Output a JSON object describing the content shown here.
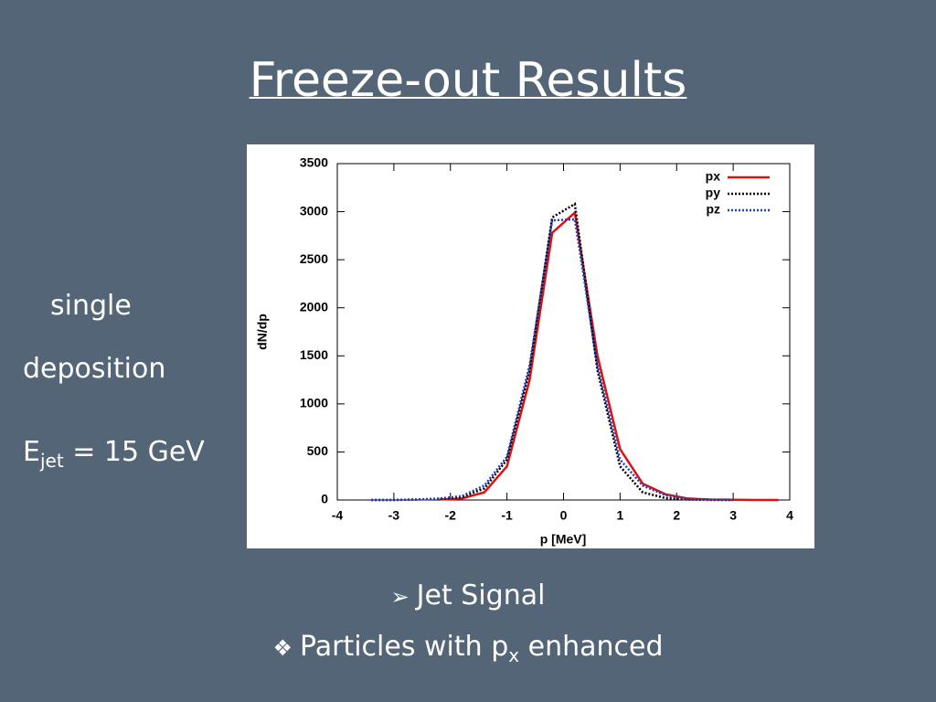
{
  "title": "Freeze-out Results",
  "side_text": {
    "line1": "single",
    "line2": "deposition",
    "energy": {
      "base": "E",
      "sub": "jet",
      "rest": " = 15 GeV"
    }
  },
  "bullets": [
    {
      "marker": "➢",
      "text": "Jet Signal"
    },
    {
      "marker": "❖",
      "text": "Particles with ",
      "base": "p",
      "sub": "x",
      "rest": " enhanced"
    }
  ],
  "chart_data": {
    "type": "line",
    "xlabel": "p [MeV]",
    "ylabel": "dN/dp",
    "x": [
      -3.4,
      -3.0,
      -2.6,
      -2.2,
      -1.8,
      -1.4,
      -1.0,
      -0.6,
      -0.2,
      0.2,
      0.6,
      1.0,
      1.4,
      1.8,
      2.2,
      2.6,
      3.0,
      3.4,
      3.8
    ],
    "series": [
      {
        "name": "px",
        "color": "#e01010",
        "style": "solid",
        "values": [
          null,
          null,
          null,
          5,
          15,
          80,
          350,
          1250,
          2780,
          2990,
          1500,
          530,
          170,
          60,
          15,
          5,
          2,
          0,
          0
        ]
      },
      {
        "name": "py",
        "color": "#000000",
        "style": "dotted",
        "values": [
          0,
          0,
          5,
          10,
          30,
          120,
          420,
          1350,
          2940,
          3080,
          1350,
          350,
          80,
          20,
          5,
          0,
          0,
          null,
          null
        ]
      },
      {
        "name": "pz",
        "color": "#1f3fbf",
        "style": "dotted",
        "values": [
          0,
          0,
          5,
          15,
          40,
          150,
          450,
          1400,
          2910,
          2920,
          1400,
          420,
          150,
          50,
          10,
          2,
          0,
          null,
          null
        ]
      }
    ],
    "xlim": [
      -4,
      4
    ],
    "xticks": [
      -4,
      -3,
      -2,
      -1,
      0,
      1,
      2,
      3,
      4
    ],
    "ylim": [
      0,
      3500
    ],
    "yticks": [
      0,
      500,
      1000,
      1500,
      2000,
      2500,
      3000,
      3500
    ],
    "grid": false,
    "legend": "top-right"
  }
}
